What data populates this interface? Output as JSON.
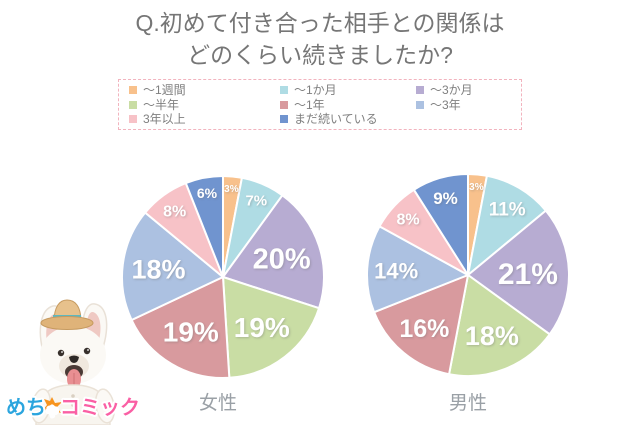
{
  "title": {
    "line1": "Q.初めて付き合った相手との関係は",
    "line2": "どのくらい続きましたか?"
  },
  "chart_data": {
    "type": "pie",
    "categories": [
      "〜1週間",
      "〜1か月",
      "〜3か月",
      "〜半年",
      "〜1年",
      "〜3年",
      "3年以上",
      "まだ続いている"
    ],
    "colors": [
      "#F8C18C",
      "#AFDCE4",
      "#B7ACD2",
      "#C9DDA4",
      "#D89A9E",
      "#ACC1E1",
      "#F7C2C7",
      "#7094CF"
    ],
    "series": [
      {
        "name": "女性",
        "values": [
          3,
          7,
          20,
          19,
          19,
          18,
          8,
          6
        ]
      },
      {
        "name": "男性",
        "values": [
          3,
          11,
          21,
          18,
          16,
          14,
          8,
          9
        ]
      }
    ],
    "start_angle_deg": 0,
    "direction": "clockwise",
    "label_format": "{value}%",
    "label_color": "#FFFFFF",
    "legend_position": "top",
    "legend_border_color": "#F2B3BE"
  },
  "logo": {
    "part1": "めち",
    "part2": "ゃ",
    "part3": "コミック",
    "part1_color": "#2BA5DE",
    "badge_color": "#F7941E",
    "part3_color": "#FA5FA4"
  },
  "mascot": {
    "description": "白いフレンチブルドッグ"
  }
}
